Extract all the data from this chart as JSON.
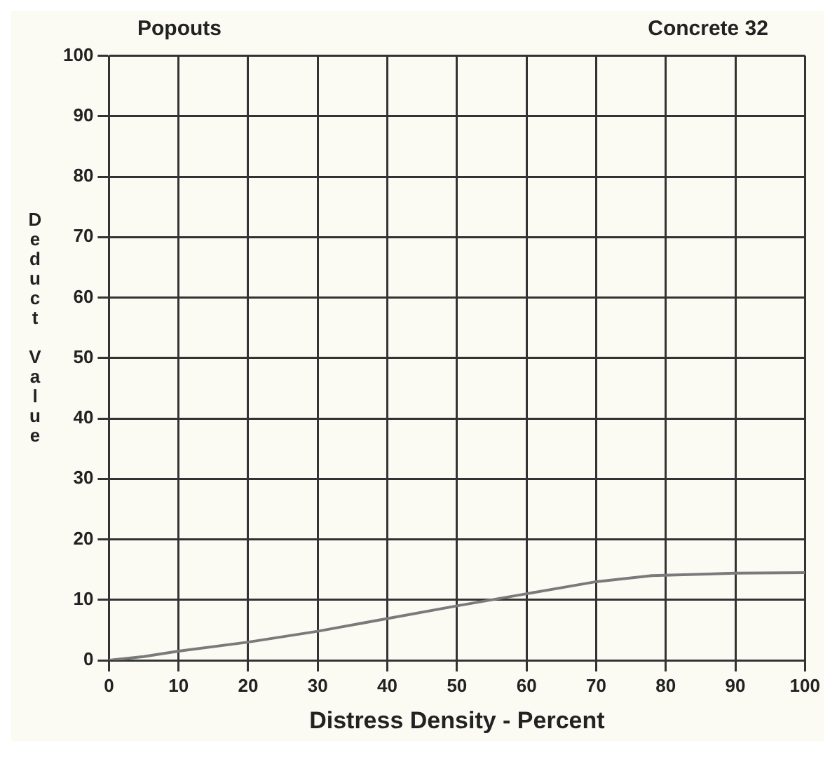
{
  "chart_data": {
    "type": "line",
    "title": "Popouts",
    "subtitle": "Concrete 32",
    "xlabel": "Distress Density - Percent",
    "ylabel": "Deduct Value",
    "x": [
      0,
      5,
      10,
      20,
      30,
      40,
      50,
      60,
      70,
      78,
      90,
      100
    ],
    "series": [
      {
        "color": "#7a7a7a",
        "values": [
          0,
          0.6,
          1.5,
          3,
          4.8,
          6.9,
          9,
          11,
          13,
          14,
          14.4,
          14.5
        ]
      }
    ],
    "xlim": [
      0,
      100
    ],
    "xticks": [
      0,
      10,
      20,
      30,
      40,
      50,
      60,
      70,
      80,
      90,
      100
    ],
    "ylim": [
      0,
      100
    ],
    "yticks": [
      0,
      10,
      20,
      30,
      40,
      50,
      60,
      70,
      80,
      90,
      100
    ],
    "grid": true,
    "legend": false,
    "marker": "none",
    "line_style": "solid"
  }
}
